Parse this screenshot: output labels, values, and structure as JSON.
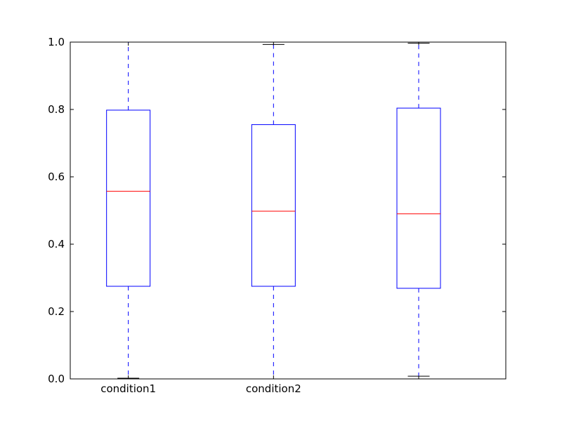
{
  "chart_data": {
    "type": "box",
    "title": "",
    "xlabel": "",
    "ylabel": "",
    "ylim": [
      0,
      1
    ],
    "yticks": [
      "0.0",
      "0.2",
      "0.4",
      "0.6",
      "0.8",
      "1.0"
    ],
    "grid": false,
    "boxes": [
      {
        "label": "condition1",
        "whisker_low": 0.002,
        "q1": 0.275,
        "median": 0.557,
        "q3": 0.798,
        "whisker_high": 1.0
      },
      {
        "label": "condition2",
        "whisker_low": 0.0,
        "q1": 0.275,
        "median": 0.498,
        "q3": 0.755,
        "whisker_high": 0.993
      },
      {
        "label": "",
        "whisker_low": 0.008,
        "q1": 0.269,
        "median": 0.49,
        "q3": 0.804,
        "whisker_high": 0.997
      }
    ],
    "colors": {
      "box": "#0000ff",
      "median": "#ff0000",
      "axes": "#000000"
    }
  }
}
